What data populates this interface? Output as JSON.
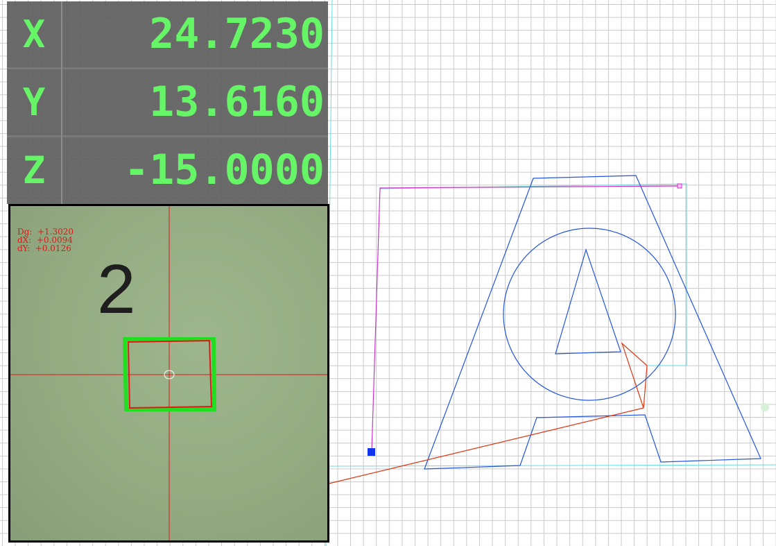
{
  "dro": {
    "rows": [
      {
        "axis": "X",
        "value": "24.7230"
      },
      {
        "axis": "Y",
        "value": "13.6160"
      },
      {
        "axis": "Z",
        "value": "-15.0000"
      }
    ],
    "text_color": "#66f566",
    "panel_color": "#5f5f5f"
  },
  "camera": {
    "readout": {
      "dg": "Dg:  +1.3020",
      "dx": "dX:  +0.0094",
      "dy": "dY:  +0.0126"
    },
    "label": "2",
    "crosshair_color": "#e01818",
    "fiducial_color": "#22dd22"
  },
  "toolpath": {
    "shape_color": "#2255dd",
    "travel_color": "#cc33cc",
    "rapid_color": "#dd3311",
    "bounds_color": "#66dddd"
  }
}
